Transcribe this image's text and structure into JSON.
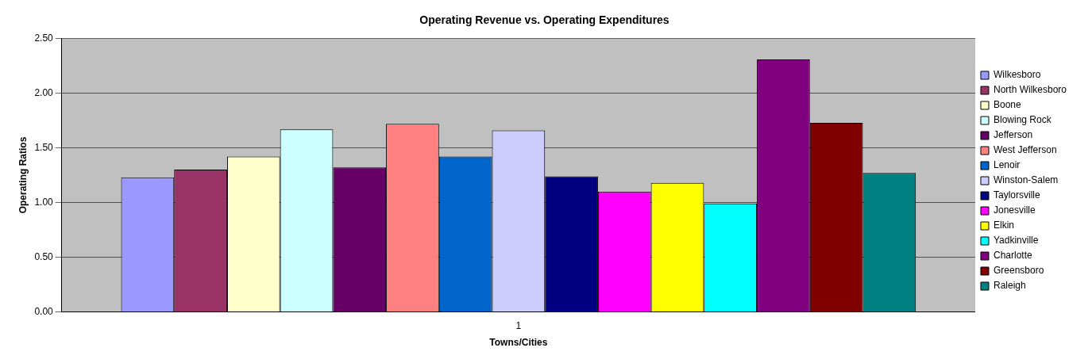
{
  "chart_data": {
    "type": "bar",
    "title": "Operating Revenue vs. Operating Expenditures",
    "xlabel": "Towns/Cities",
    "ylabel": "Operating Ratios",
    "categories": [
      "1"
    ],
    "series": [
      {
        "name": "Wilkesboro",
        "color": "#9999ff",
        "values": [
          1.23
        ]
      },
      {
        "name": "North Wilkesboro",
        "color": "#993366",
        "values": [
          1.3
        ]
      },
      {
        "name": "Boone",
        "color": "#ffffcc",
        "values": [
          1.42
        ]
      },
      {
        "name": "Blowing Rock",
        "color": "#ccffff",
        "values": [
          1.67
        ]
      },
      {
        "name": "Jefferson",
        "color": "#660066",
        "values": [
          1.32
        ]
      },
      {
        "name": "West Jefferson",
        "color": "#ff8080",
        "values": [
          1.72
        ]
      },
      {
        "name": "Lenoir",
        "color": "#0066cc",
        "values": [
          1.42
        ]
      },
      {
        "name": "Winston-Salem",
        "color": "#ccccff",
        "values": [
          1.66
        ]
      },
      {
        "name": "Taylorsville",
        "color": "#000080",
        "values": [
          1.24
        ]
      },
      {
        "name": "Jonesville",
        "color": "#ff00ff",
        "values": [
          1.1
        ]
      },
      {
        "name": "Elkin",
        "color": "#ffff00",
        "values": [
          1.18
        ]
      },
      {
        "name": "Yadkinville",
        "color": "#00ffff",
        "values": [
          0.99
        ]
      },
      {
        "name": "Charlotte",
        "color": "#800080",
        "values": [
          2.31
        ]
      },
      {
        "name": "Greensboro",
        "color": "#800000",
        "values": [
          1.73
        ]
      },
      {
        "name": "Raleigh",
        "color": "#008080",
        "values": [
          1.27
        ]
      }
    ],
    "ylim": [
      0,
      2.5
    ],
    "yticks": [
      {
        "value": 0,
        "label": "0.00"
      },
      {
        "value": 0.5,
        "label": "0.50"
      },
      {
        "value": 1,
        "label": "1.00"
      },
      {
        "value": 1.5,
        "label": "1.50"
      },
      {
        "value": 2,
        "label": "2.00"
      },
      {
        "value": 2.5,
        "label": "2.50"
      }
    ],
    "grid": "y",
    "legend": "right"
  }
}
